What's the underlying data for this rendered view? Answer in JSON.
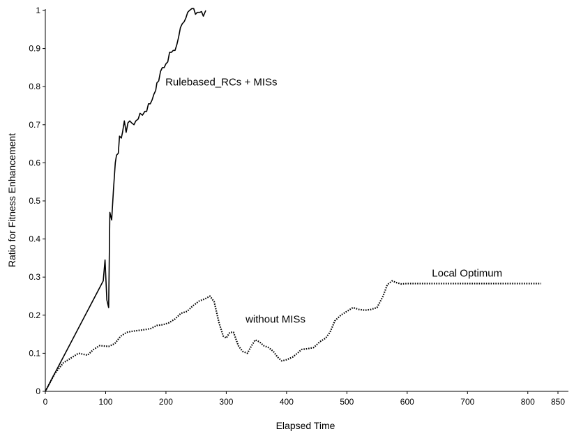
{
  "chart_data": {
    "type": "line",
    "title": "",
    "xlabel": "Elapsed Time",
    "ylabel": "Ratio for Fitness Enhancement",
    "xlim": [
      0,
      850
    ],
    "ylim": [
      0,
      1
    ],
    "x_ticks": [
      0,
      100,
      200,
      300,
      400,
      500,
      600,
      700,
      800,
      850
    ],
    "y_ticks": [
      0,
      0.1,
      0.2,
      0.3,
      0.4,
      0.5,
      0.6,
      0.7,
      0.8,
      0.9,
      1
    ],
    "grid": false,
    "legend": "none",
    "annotations": [
      {
        "text": "Rulebased_RCs + MISs",
        "x": 199,
        "y": 0.812
      },
      {
        "text": "without MISs",
        "x": 332,
        "y": 0.19
      },
      {
        "text": "Local Optimum",
        "x": 641,
        "y": 0.31
      }
    ],
    "series": [
      {
        "style": "solid",
        "color": "#000000",
        "points": [
          [
            0,
            0
          ],
          [
            96,
            0.29
          ],
          [
            99,
            0.345
          ],
          [
            102,
            0.24
          ],
          [
            105,
            0.22
          ],
          [
            107,
            0.47
          ],
          [
            110,
            0.45
          ],
          [
            113,
            0.53
          ],
          [
            116,
            0.6
          ],
          [
            118,
            0.62
          ],
          [
            121,
            0.625
          ],
          [
            123,
            0.67
          ],
          [
            126,
            0.665
          ],
          [
            128,
            0.68
          ],
          [
            131,
            0.71
          ],
          [
            134,
            0.68
          ],
          [
            137,
            0.705
          ],
          [
            140,
            0.71
          ],
          [
            143,
            0.705
          ],
          [
            147,
            0.7
          ],
          [
            150,
            0.71
          ],
          [
            154,
            0.715
          ],
          [
            157,
            0.73
          ],
          [
            161,
            0.725
          ],
          [
            165,
            0.735
          ],
          [
            168,
            0.735
          ],
          [
            171,
            0.755
          ],
          [
            174,
            0.755
          ],
          [
            177,
            0.765
          ],
          [
            180,
            0.78
          ],
          [
            183,
            0.79
          ],
          [
            185,
            0.81
          ],
          [
            188,
            0.815
          ],
          [
            191,
            0.84
          ],
          [
            194,
            0.85
          ],
          [
            197,
            0.85
          ],
          [
            200,
            0.86
          ],
          [
            203,
            0.865
          ],
          [
            206,
            0.89
          ],
          [
            209,
            0.89
          ],
          [
            212,
            0.895
          ],
          [
            215,
            0.895
          ],
          [
            218,
            0.91
          ],
          [
            221,
            0.93
          ],
          [
            224,
            0.955
          ],
          [
            227,
            0.965
          ],
          [
            230,
            0.97
          ],
          [
            233,
            0.98
          ],
          [
            236,
            0.995
          ],
          [
            239,
            1.0
          ],
          [
            243,
            1.005
          ],
          [
            246,
            1.005
          ],
          [
            249,
            0.99
          ],
          [
            252,
            0.995
          ],
          [
            256,
            0.995
          ],
          [
            259,
            0.997
          ],
          [
            262,
            0.985
          ],
          [
            266,
            1.0
          ]
        ]
      },
      {
        "style": "dotted",
        "color": "#000000",
        "points": [
          [
            0,
            0
          ],
          [
            15,
            0.045
          ],
          [
            30,
            0.075
          ],
          [
            45,
            0.09
          ],
          [
            55,
            0.1
          ],
          [
            70,
            0.095
          ],
          [
            80,
            0.11
          ],
          [
            90,
            0.12
          ],
          [
            105,
            0.118
          ],
          [
            115,
            0.125
          ],
          [
            125,
            0.145
          ],
          [
            135,
            0.155
          ],
          [
            145,
            0.158
          ],
          [
            155,
            0.16
          ],
          [
            165,
            0.162
          ],
          [
            175,
            0.165
          ],
          [
            185,
            0.173
          ],
          [
            195,
            0.175
          ],
          [
            205,
            0.18
          ],
          [
            215,
            0.19
          ],
          [
            225,
            0.205
          ],
          [
            235,
            0.21
          ],
          [
            245,
            0.225
          ],
          [
            255,
            0.237
          ],
          [
            265,
            0.243
          ],
          [
            273,
            0.25
          ],
          [
            280,
            0.235
          ],
          [
            288,
            0.18
          ],
          [
            295,
            0.145
          ],
          [
            300,
            0.14
          ],
          [
            306,
            0.155
          ],
          [
            312,
            0.155
          ],
          [
            320,
            0.12
          ],
          [
            327,
            0.105
          ],
          [
            335,
            0.1
          ],
          [
            342,
            0.12
          ],
          [
            348,
            0.135
          ],
          [
            355,
            0.13
          ],
          [
            362,
            0.12
          ],
          [
            370,
            0.115
          ],
          [
            378,
            0.105
          ],
          [
            385,
            0.09
          ],
          [
            392,
            0.08
          ],
          [
            400,
            0.083
          ],
          [
            410,
            0.09
          ],
          [
            418,
            0.1
          ],
          [
            425,
            0.11
          ],
          [
            435,
            0.112
          ],
          [
            445,
            0.115
          ],
          [
            455,
            0.13
          ],
          [
            465,
            0.14
          ],
          [
            472,
            0.155
          ],
          [
            480,
            0.185
          ],
          [
            490,
            0.2
          ],
          [
            500,
            0.21
          ],
          [
            510,
            0.22
          ],
          [
            520,
            0.215
          ],
          [
            530,
            0.213
          ],
          [
            540,
            0.215
          ],
          [
            550,
            0.22
          ],
          [
            560,
            0.25
          ],
          [
            567,
            0.28
          ],
          [
            575,
            0.29
          ],
          [
            583,
            0.285
          ],
          [
            590,
            0.282
          ],
          [
            600,
            0.283
          ],
          [
            620,
            0.283
          ],
          [
            650,
            0.283
          ],
          [
            700,
            0.283
          ],
          [
            750,
            0.283
          ],
          [
            790,
            0.283
          ],
          [
            822,
            0.283
          ]
        ]
      }
    ]
  }
}
